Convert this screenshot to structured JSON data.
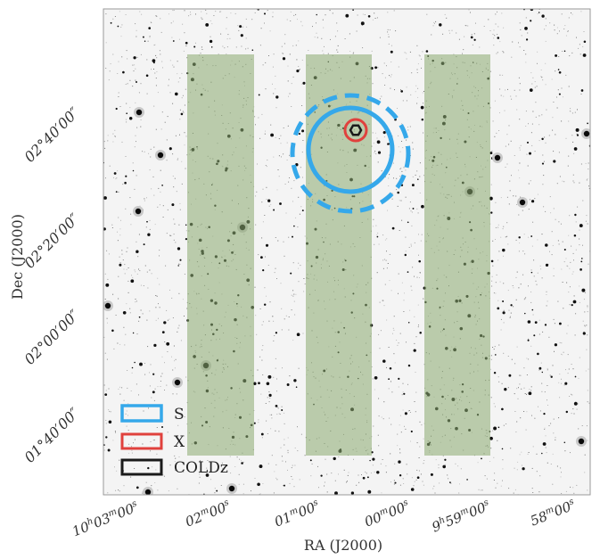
{
  "chart_data": {
    "type": "sky-map",
    "xlabel": "RA (J2000)",
    "ylabel": "Dec (J2000)",
    "x_ticks": [
      {
        "label": "10h03m00s",
        "main": "10",
        "h": "h",
        "mid": "03",
        "m": "m",
        "sec": "00",
        "s": "s"
      },
      {
        "label": "02m00s",
        "main": "02",
        "m": "m",
        "sec": "00",
        "s": "s"
      },
      {
        "label": "01m00s",
        "main": "01",
        "m": "m",
        "sec": "00",
        "s": "s"
      },
      {
        "label": "00m00s",
        "main": "00",
        "m": "m",
        "sec": "00",
        "s": "s"
      },
      {
        "label": "9h59m00s",
        "main": "9",
        "h": "h",
        "mid": "59",
        "m": "m",
        "sec": "00",
        "s": "s"
      },
      {
        "label": "58m00s",
        "main": "58",
        "m": "m",
        "sec": "00",
        "s": "s"
      }
    ],
    "y_ticks": [
      {
        "label": "02°40′00″",
        "deg": "02°",
        "min": "40′",
        "sec": "00″"
      },
      {
        "label": "02°20′00″",
        "deg": "02°",
        "min": "20′",
        "sec": "00″"
      },
      {
        "label": "02°00′00″",
        "deg": "02°",
        "min": "00′",
        "sec": "00″"
      },
      {
        "label": "01°40′00″",
        "deg": "01°",
        "min": "40′",
        "sec": "00″"
      }
    ],
    "legend": {
      "placement": "lower-left",
      "entries": [
        {
          "label": "S",
          "color": "#35a8ea"
        },
        {
          "label": "X",
          "color": "#e0413d"
        },
        {
          "label": "COLDz",
          "color": "#1a1a1a"
        }
      ]
    },
    "colors": {
      "strip_fill": "#8aa96f",
      "s_band": "#35a8ea",
      "x_band": "#e0413d",
      "coldz": "#1a1a1a",
      "frame": "#9a9a9a"
    },
    "strip_count": 3,
    "grid": false
  }
}
